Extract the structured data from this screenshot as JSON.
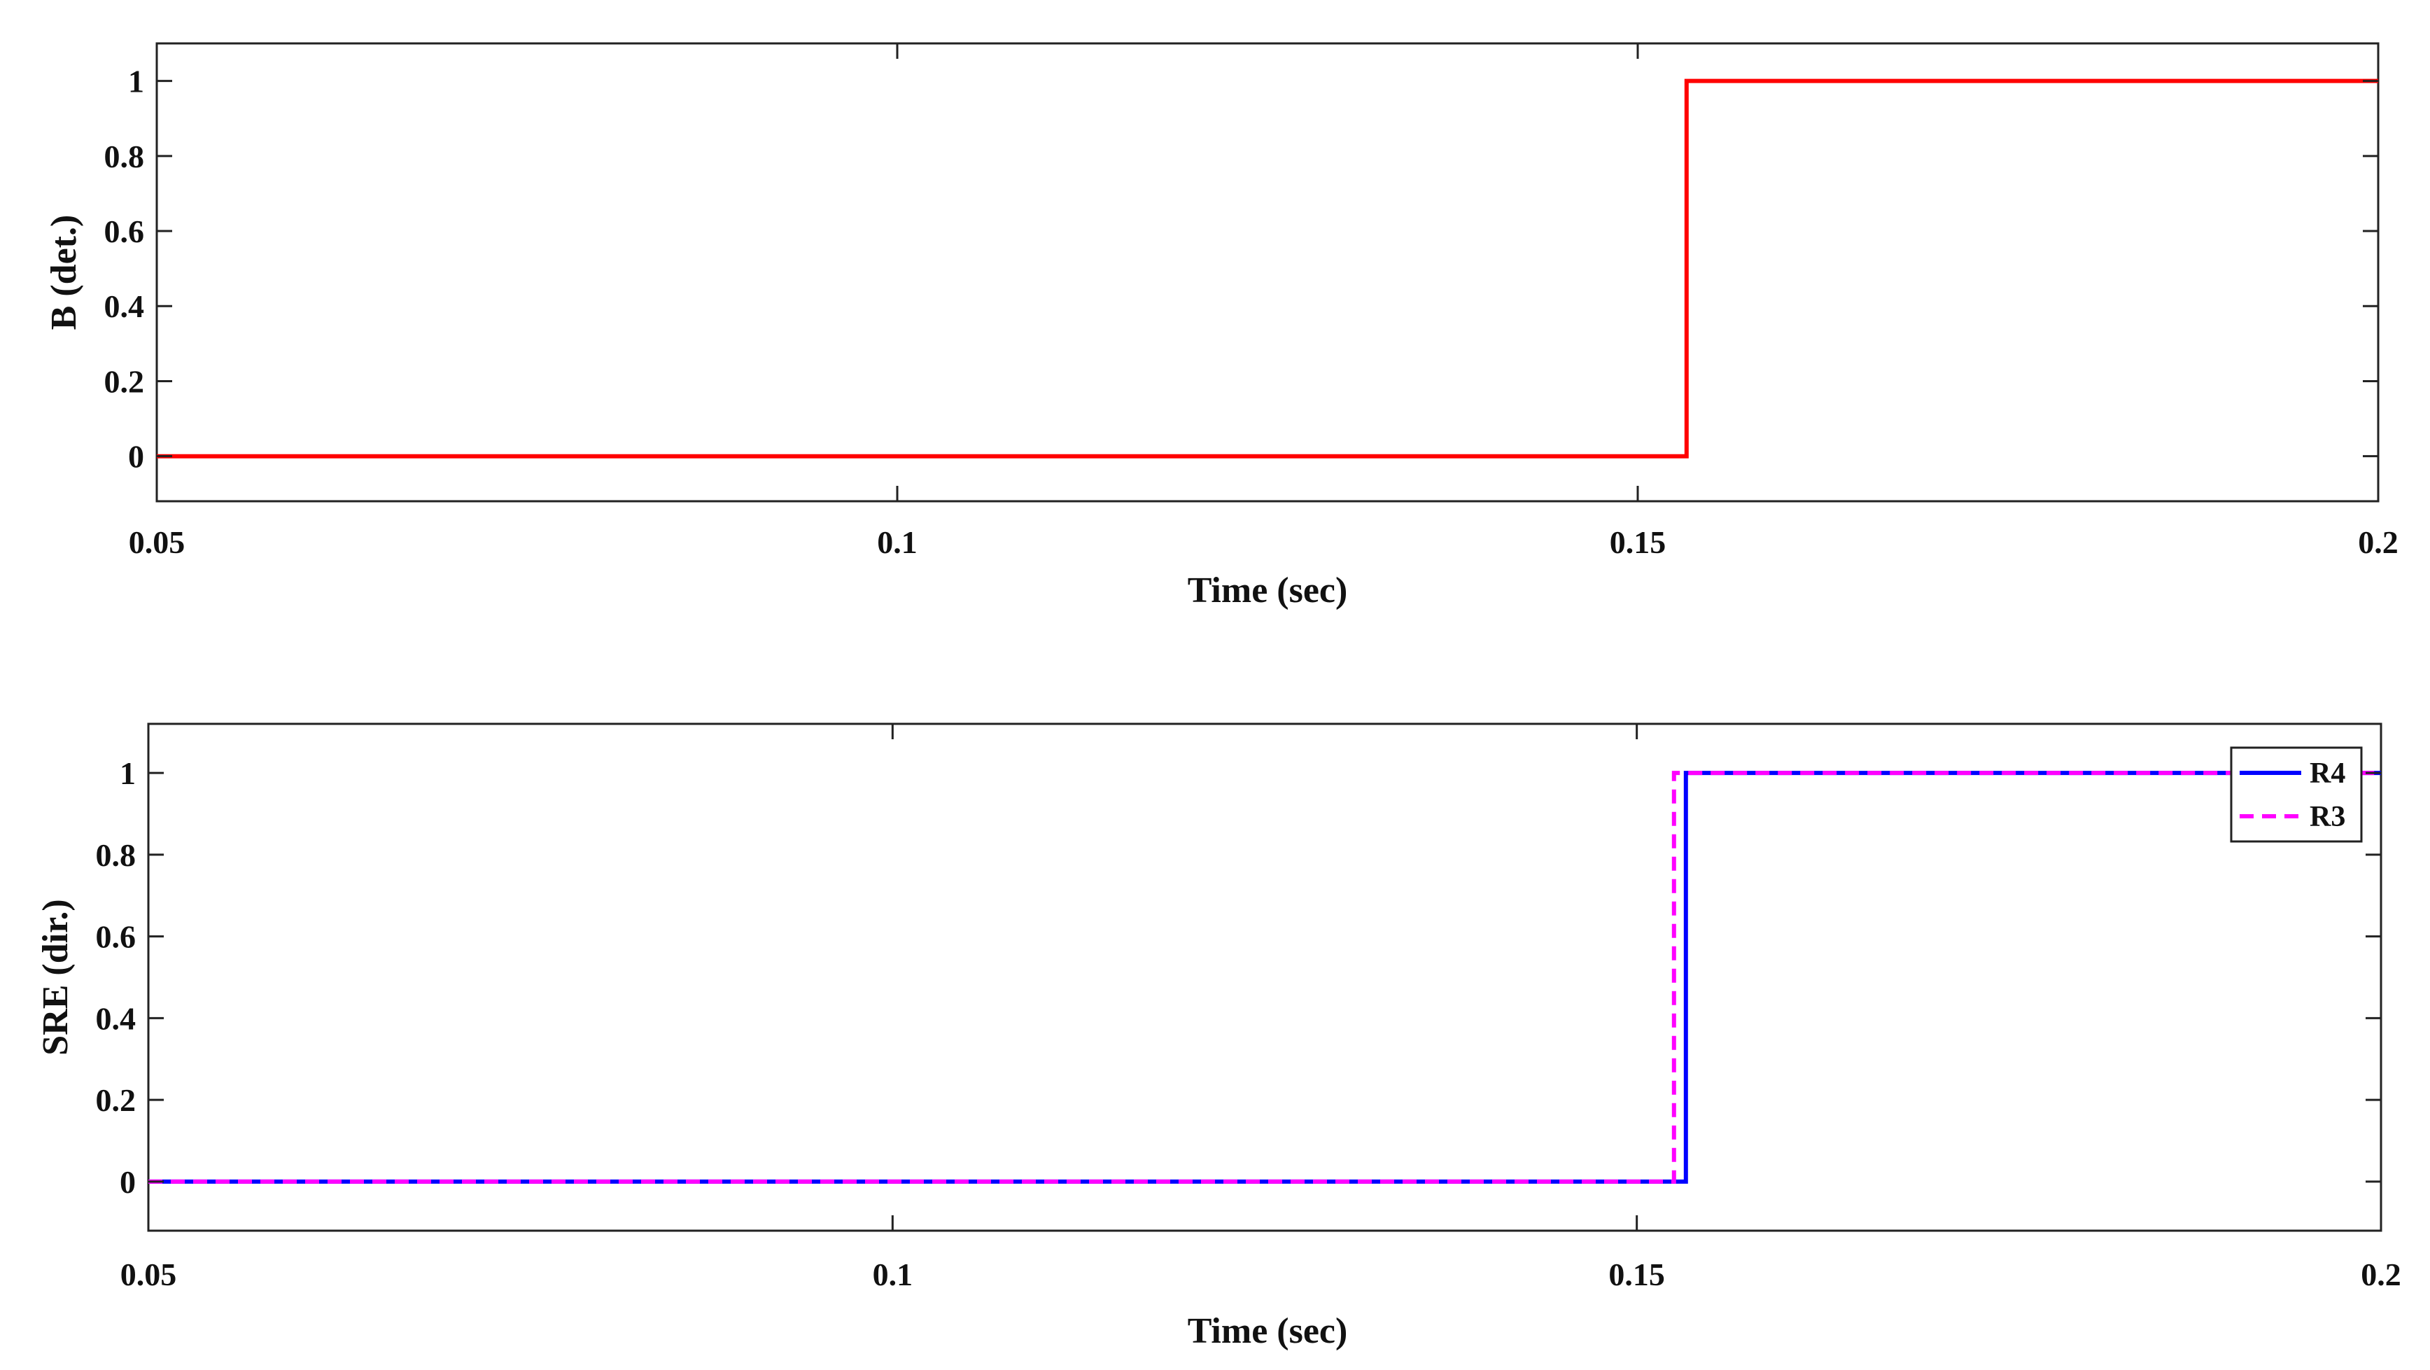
{
  "chart_data": [
    {
      "type": "line",
      "title": "",
      "xlabel": "Time (sec)",
      "ylabel": "B (det.)",
      "xlim": [
        0.05,
        0.2
      ],
      "ylim": [
        -0.12,
        1.1
      ],
      "xticks": [
        0.05,
        0.1,
        0.15,
        0.2
      ],
      "xtick_labels": [
        "0.05",
        "0.1",
        "0.15",
        "0.2"
      ],
      "yticks": [
        0,
        0.2,
        0.4,
        0.6,
        0.8,
        1
      ],
      "ytick_labels": [
        "0",
        "0.2",
        "0.4",
        "0.6",
        "0.8",
        "1"
      ],
      "grid": false,
      "legend": null,
      "series": [
        {
          "color": "#ff0000",
          "style": "solid",
          "x": [
            0.05,
            0.1533,
            0.1533,
            0.2
          ],
          "y": [
            0,
            0,
            1,
            1
          ]
        }
      ]
    },
    {
      "type": "line",
      "title": "",
      "xlabel": "Time (sec)",
      "ylabel": "SRE (dir.)",
      "xlim": [
        0.05,
        0.2
      ],
      "ylim": [
        -0.12,
        1.12
      ],
      "xticks": [
        0.05,
        0.1,
        0.15,
        0.2
      ],
      "xtick_labels": [
        "0.05",
        "0.1",
        "0.15",
        "0.2"
      ],
      "yticks": [
        0,
        0.2,
        0.4,
        0.6,
        0.8,
        1
      ],
      "ytick_labels": [
        "0",
        "0.2",
        "0.4",
        "0.6",
        "0.8",
        "1"
      ],
      "grid": false,
      "legend": "top-right",
      "series": [
        {
          "name": "R4",
          "color": "#0000ff",
          "style": "solid",
          "x": [
            0.05,
            0.1533,
            0.1533,
            0.2
          ],
          "y": [
            0,
            0,
            1,
            1
          ]
        },
        {
          "name": "R3",
          "color": "#ff00ff",
          "style": "dashed",
          "x": [
            0.05,
            0.1525,
            0.1525,
            0.2
          ],
          "y": [
            0,
            0,
            1,
            1
          ]
        }
      ]
    }
  ]
}
